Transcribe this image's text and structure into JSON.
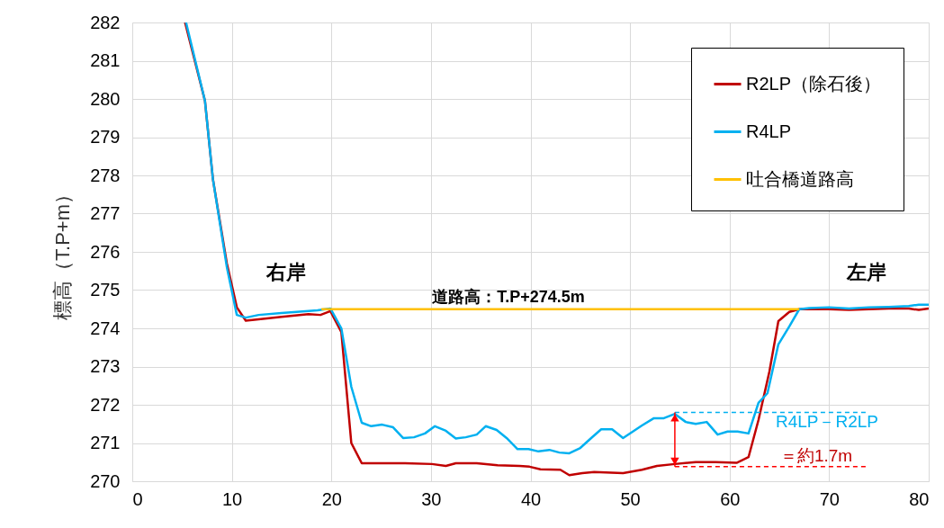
{
  "chart_data": {
    "type": "line",
    "ylabel": "標高（T.P+m）",
    "xlim": [
      0,
      80
    ],
    "xticks": [
      0,
      10,
      20,
      30,
      40,
      50,
      60,
      70,
      80
    ],
    "ylim": [
      270,
      282
    ],
    "yticks": [
      270,
      271,
      272,
      273,
      274,
      275,
      276,
      277,
      278,
      279,
      280,
      281,
      282
    ],
    "grid": true,
    "legend": "top right",
    "series": [
      {
        "name": "R2LP（除石後）",
        "color": "#c00000",
        "x": [
          5.3,
          7.3,
          8.1,
          9.5,
          10.5,
          11.4,
          12.9,
          15,
          17.7,
          18.9,
          19.9,
          21,
          22,
          23.05,
          27.4,
          30.1,
          31.5,
          32.5,
          34.6,
          36.7,
          38.9,
          39.9,
          41,
          43,
          43.9,
          45.2,
          46.4,
          49.3,
          51.2,
          52.7,
          54.5,
          56.6,
          58.6,
          60.7,
          61.9,
          62.9,
          64,
          64.9,
          66,
          67,
          68,
          70,
          72,
          74,
          76,
          78,
          79,
          80
        ],
        "values": [
          282,
          279.95,
          277.9,
          275.7,
          274.55,
          274.2,
          274.24,
          274.3,
          274.37,
          274.35,
          274.45,
          273.9,
          271,
          270.47,
          270.47,
          270.45,
          270.4,
          270.47,
          270.47,
          270.42,
          270.4,
          270.38,
          270.31,
          270.3,
          270.16,
          270.21,
          270.24,
          270.21,
          270.3,
          270.4,
          270.45,
          270.5,
          270.5,
          270.48,
          270.63,
          271.6,
          272.87,
          274.19,
          274.43,
          274.5,
          274.5,
          274.5,
          274.48,
          274.5,
          274.52,
          274.52,
          274.48,
          274.52
        ]
      },
      {
        "name": "R4LP",
        "color": "#00b0f0",
        "x": [
          5.4,
          7.3,
          8.1,
          9.5,
          10.5,
          11.4,
          12.7,
          15,
          18.6,
          19.9,
          21,
          22,
          23.05,
          24,
          25.1,
          26.2,
          27.2,
          28.3,
          29.4,
          30.4,
          31.5,
          32.5,
          33.5,
          34.6,
          35.5,
          36.6,
          37.6,
          38.7,
          39.8,
          40.8,
          41.9,
          42.9,
          43.9,
          45,
          46.1,
          47.1,
          48.2,
          49.3,
          51.2,
          52.4,
          53.4,
          54.5,
          55.6,
          56.6,
          57.7,
          58.8,
          59.8,
          60.8,
          61.9,
          62.9,
          63.8,
          64.9,
          66,
          67,
          68,
          70,
          72,
          74,
          76,
          78,
          79,
          80
        ],
        "values": [
          282,
          279.95,
          277.9,
          275.6,
          274.35,
          274.28,
          274.35,
          274.4,
          274.47,
          274.52,
          274,
          272.47,
          271.53,
          271.44,
          271.48,
          271.41,
          271.13,
          271.15,
          271.25,
          271.44,
          271.32,
          271.12,
          271.15,
          271.22,
          271.44,
          271.34,
          271.13,
          270.84,
          270.84,
          270.78,
          270.82,
          270.75,
          270.73,
          270.87,
          271.13,
          271.36,
          271.36,
          271.13,
          271.46,
          271.65,
          271.65,
          271.76,
          271.55,
          271.5,
          271.55,
          271.22,
          271.3,
          271.3,
          271.25,
          272.05,
          272.3,
          273.58,
          274.05,
          274.5,
          274.53,
          274.55,
          274.52,
          274.55,
          274.56,
          274.58,
          274.62,
          274.62
        ]
      },
      {
        "name": "吐合橋道路高",
        "color": "#ffc000",
        "x": [
          19,
          67
        ],
        "values": [
          274.5,
          274.5
        ]
      }
    ],
    "annotations": [
      "右岸",
      "左岸",
      "道路高：T.P+274.5m",
      {
        "text": "R4LP－R2LP",
        "x": 54.5,
        "y": 271.8
      },
      {
        "text": "＝約1.7m",
        "x": 54.5,
        "y": 270.38
      }
    ]
  }
}
